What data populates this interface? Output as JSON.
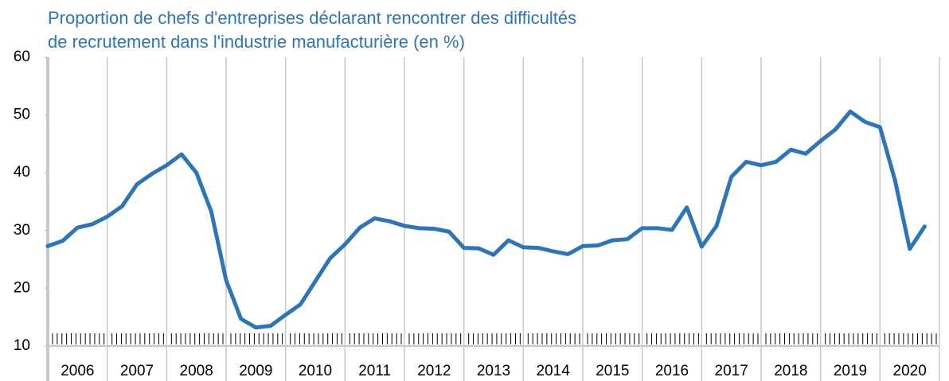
{
  "chart_data": {
    "type": "line",
    "title": [
      "Proportion de chefs d'entreprises déclarant rencontrer des difficultés",
      "de recrutement dans l'industrie manufacturière (en %)"
    ],
    "categories": [
      "2006",
      "2007",
      "2008",
      "2009",
      "2010",
      "2011",
      "2012",
      "2013",
      "2014",
      "2015",
      "2016",
      "2017",
      "2018",
      "2019",
      "2020"
    ],
    "values": [
      [
        27.3,
        28.2,
        30.5,
        31.1
      ],
      [
        32.4,
        34.2,
        38.0,
        39.8
      ],
      [
        41.3,
        43.2,
        40.0,
        33.3
      ],
      [
        21.4,
        14.7,
        13.2,
        13.5
      ],
      [
        15.4,
        17.2,
        21.2,
        25.2
      ],
      [
        27.6,
        30.5,
        32.1,
        31.6
      ],
      [
        30.8,
        30.4,
        30.3,
        29.8
      ],
      [
        27.0,
        26.9,
        25.8,
        28.3
      ],
      [
        27.1,
        27.0,
        26.4,
        25.9
      ],
      [
        27.3,
        27.4,
        28.3,
        28.5
      ],
      [
        30.4,
        30.4,
        30.1,
        34.0
      ],
      [
        27.2,
        30.8,
        39.3,
        41.9
      ],
      [
        41.3,
        41.9,
        44.0,
        43.3
      ],
      [
        45.5,
        47.5,
        50.6,
        48.8
      ],
      [
        47.9,
        38.8,
        26.8,
        30.7
      ]
    ],
    "color": "#2e75b6",
    "ylim": [
      10,
      60
    ],
    "yticks": [
      10,
      20,
      30,
      40,
      50,
      60
    ],
    "grid": true
  }
}
